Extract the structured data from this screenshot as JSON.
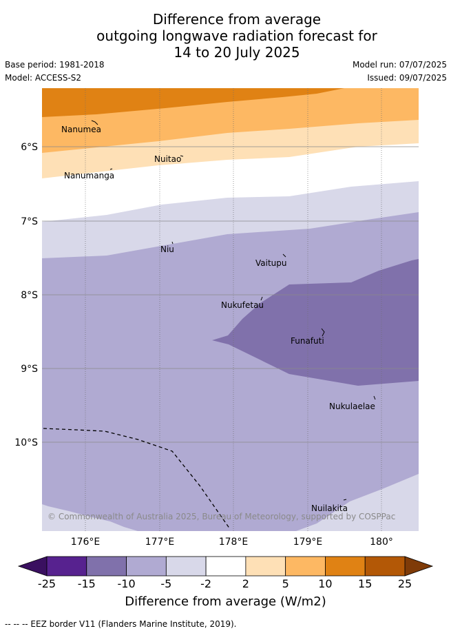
{
  "title": {
    "line1": "Difference from average",
    "line2": "outgoing longwave radiation forecast for",
    "line3": "14 to 20 July 2025"
  },
  "meta": {
    "base_period": "Base period: 1981-2018",
    "model": "Model: ACCESS-S2",
    "model_run": "Model run: 07/07/2025",
    "issued": "Issued: 09/07/2025"
  },
  "map": {
    "lon_ticks": [
      "176°E",
      "177°E",
      "178°E",
      "179°E",
      "180°"
    ],
    "lat_ticks": [
      "6°S",
      "7°S",
      "8°S",
      "9°S",
      "10°S"
    ],
    "islands": [
      {
        "name": "Nanumea"
      },
      {
        "name": "Nuitao"
      },
      {
        "name": "Nanumanga"
      },
      {
        "name": "Niu"
      },
      {
        "name": "Vaitupu"
      },
      {
        "name": "Nukufetau"
      },
      {
        "name": "Funafuti"
      },
      {
        "name": "Nukulaelae"
      },
      {
        "name": "Nuilakita"
      }
    ],
    "copyright": "© Commonwealth of Australia 2025, Bureau of Meteorology, supported by COSPPac"
  },
  "colorbar": {
    "ticks": [
      "-25",
      "-15",
      "-10",
      "-5",
      "-2",
      "2",
      "5",
      "10",
      "15",
      "25"
    ],
    "colors": [
      "#57228f",
      "#8071ab",
      "#b0aad2",
      "#d8d8e9",
      "#ffffff",
      "#fee0b6",
      "#fdb863",
      "#e08214",
      "#b35806"
    ],
    "under_color": "#3a1060",
    "over_color": "#7f3b08",
    "title": "Difference from average (W/m2)"
  },
  "footnote": "-- -- -- EEZ border V11 (Flanders Marine Institute, 2019)."
}
